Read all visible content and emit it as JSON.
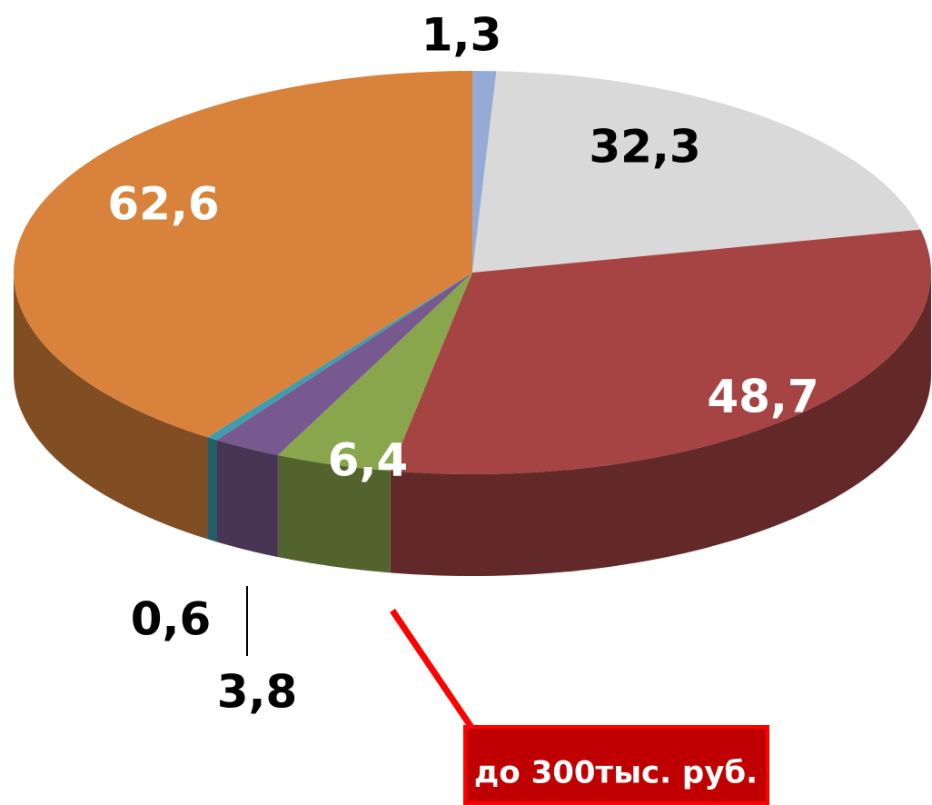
{
  "chart_data": {
    "type": "pie3d",
    "categories": [
      null,
      null,
      null,
      null,
      null,
      null,
      null
    ],
    "values": [
      1.3,
      32.3,
      48.7,
      6.4,
      3.8,
      0.6,
      62.6
    ],
    "value_labels": [
      "1,3",
      "32,3",
      "48,7",
      "6,4",
      "3,8",
      "0,6",
      "62,6"
    ],
    "colors": [
      "#95abd6",
      "#d9d9d9",
      "#a64444",
      "#8aa64c",
      "#78598f",
      "#3f9db0",
      "#d8823c"
    ],
    "annotation": "до 300тыс. руб."
  }
}
